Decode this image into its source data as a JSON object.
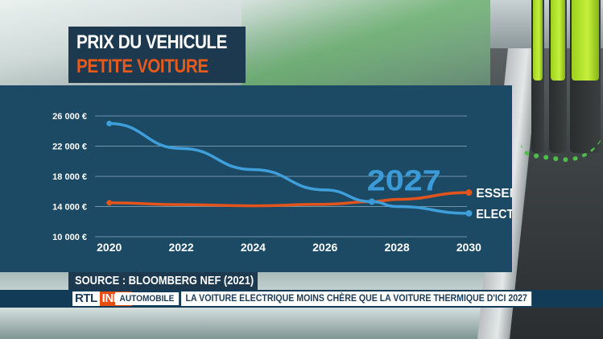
{
  "title": {
    "line1": "PRIX  DU VEHICULE",
    "line2": "PETITE VOITURE"
  },
  "source": "SOURCE : BLOOMBERG NEF (2021)",
  "ticker": {
    "logo_rtl": "RTL",
    "logo_info": "INFO",
    "category": "AUTOMOBILE",
    "headline": "LA VOITURE ELECTRIQUE MOINS CHÈRE QUE LA VOITURE THERMIQUE D'ICI 2027"
  },
  "colors": {
    "essence": "#e3541c",
    "electrique": "#3f9fdb",
    "highlight": "#3a9bd8",
    "grid": "#6f93a8"
  },
  "chart_data": {
    "type": "line",
    "title": "PRIX DU VEHICULE PETITE VOITURE",
    "xlabel": "",
    "ylabel": "",
    "x_ticks": [
      2020,
      2022,
      2024,
      2026,
      2028,
      2030
    ],
    "y_ticks": [
      10000,
      14000,
      18000,
      22000,
      26000
    ],
    "y_tick_labels": [
      "10 000 €",
      "14 000 €",
      "18 000 €",
      "22 000 €",
      "26 000 €"
    ],
    "xlim": [
      2019.2,
      2031.2
    ],
    "ylim": [
      10000,
      26000
    ],
    "grid": true,
    "series": [
      {
        "name": "ESSENCE",
        "x": [
          2020,
          2022,
          2024,
          2026,
          2027.3,
          2028,
          2030
        ],
        "values": [
          14500,
          14250,
          14100,
          14300,
          14650,
          14950,
          15850
        ]
      },
      {
        "name": "ELECTRIQUE",
        "x": [
          2020,
          2022,
          2024,
          2026,
          2027.3,
          2028,
          2030
        ],
        "values": [
          25000,
          21700,
          18900,
          16200,
          14650,
          14000,
          13100
        ]
      }
    ],
    "annotation": {
      "text": "2027",
      "x": 2027.3,
      "y": 14650
    }
  }
}
